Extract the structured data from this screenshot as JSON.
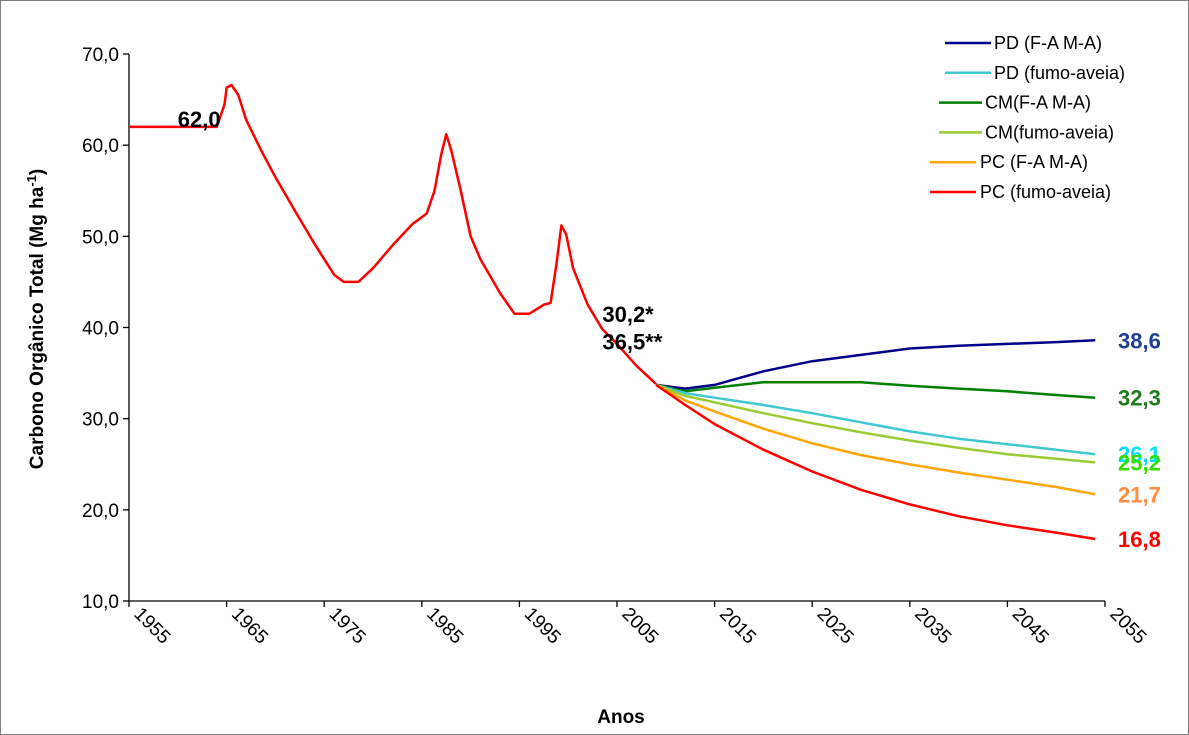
{
  "chart_data": {
    "type": "line",
    "title": "",
    "xlabel": "Anos",
    "ylabel": "Carbono Orgânico Total (Mg ha-1)",
    "ylabel_sup": "-1",
    "ylabel_main": "Carbono Orgânico Total (Mg ha",
    "ylabel_close": ")",
    "xlim": [
      1955,
      2055
    ],
    "ylim": [
      10.0,
      70.0
    ],
    "x_ticks": [
      "1955",
      "1965",
      "1975",
      "1985",
      "1995",
      "2005",
      "2015",
      "2025",
      "2035",
      "2045",
      "2055"
    ],
    "y_ticks": [
      "10,0",
      "20,0",
      "30,0",
      "40,0",
      "50,0",
      "60,0",
      "70,0"
    ],
    "y_tick_values": [
      10,
      20,
      30,
      40,
      50,
      60,
      70
    ],
    "x_tick_values": [
      1955,
      1965,
      1975,
      1985,
      1995,
      2005,
      2015,
      2025,
      2035,
      2045,
      2055
    ],
    "grid": false,
    "legend_position": "top-right",
    "history": {
      "color": "#ff0000",
      "points": [
        [
          1955,
          62.0
        ],
        [
          1964,
          62.0
        ],
        [
          1964.8,
          64.5
        ],
        [
          1965,
          66.3
        ],
        [
          1965.5,
          66.6
        ],
        [
          1966.2,
          65.5
        ],
        [
          1967,
          62.8
        ],
        [
          1968.5,
          59.5
        ],
        [
          1970,
          56.5
        ],
        [
          1972,
          52.8
        ],
        [
          1974,
          49.2
        ],
        [
          1976,
          45.8
        ],
        [
          1977,
          45.0
        ],
        [
          1978.5,
          45.0
        ],
        [
          1980,
          46.5
        ],
        [
          1982,
          49.0
        ],
        [
          1984,
          51.3
        ],
        [
          1985.5,
          52.5
        ],
        [
          1986.3,
          55.0
        ],
        [
          1987,
          59.0
        ],
        [
          1987.5,
          61.2
        ],
        [
          1988,
          59.5
        ],
        [
          1989,
          55.0
        ],
        [
          1990,
          50.0
        ],
        [
          1991,
          47.5
        ],
        [
          1993,
          43.8
        ],
        [
          1994.5,
          41.5
        ],
        [
          1996,
          41.5
        ],
        [
          1997.5,
          42.5
        ],
        [
          1998.2,
          42.7
        ],
        [
          1998.8,
          47.0
        ],
        [
          1999.3,
          51.2
        ],
        [
          1999.8,
          50.2
        ],
        [
          2000.5,
          46.5
        ],
        [
          2002,
          42.5
        ],
        [
          2003.5,
          39.8
        ],
        [
          2005,
          38.2
        ],
        [
          2007,
          35.8
        ],
        [
          2009,
          33.8
        ]
      ]
    },
    "series": [
      {
        "name": "PD (F-A M-A)",
        "color": "#00008b",
        "end_label": "38,6",
        "end_label_color": "#1f3f8f",
        "points": [
          [
            2009,
            33.7
          ],
          [
            2012,
            33.3
          ],
          [
            2015,
            33.7
          ],
          [
            2020,
            35.2
          ],
          [
            2025,
            36.3
          ],
          [
            2030,
            37.0
          ],
          [
            2035,
            37.7
          ],
          [
            2040,
            38.0
          ],
          [
            2045,
            38.2
          ],
          [
            2050,
            38.4
          ],
          [
            2054,
            38.6
          ]
        ]
      },
      {
        "name": "PD (fumo-aveia)",
        "color": "#40c8d0",
        "end_label": "26,1",
        "end_label_color": "#00e0ff",
        "points": [
          [
            2009,
            33.7
          ],
          [
            2012,
            32.8
          ],
          [
            2015,
            32.3
          ],
          [
            2020,
            31.5
          ],
          [
            2025,
            30.6
          ],
          [
            2030,
            29.6
          ],
          [
            2035,
            28.6
          ],
          [
            2040,
            27.8
          ],
          [
            2045,
            27.2
          ],
          [
            2050,
            26.6
          ],
          [
            2054,
            26.1
          ]
        ]
      },
      {
        "name": "CM(F-A M-A)",
        "color": "#008000",
        "end_label": "32,3",
        "end_label_color": "#1e7b1e",
        "points": [
          [
            2009,
            33.7
          ],
          [
            2012,
            33.0
          ],
          [
            2015,
            33.4
          ],
          [
            2020,
            34.0
          ],
          [
            2025,
            34.0
          ],
          [
            2030,
            34.0
          ],
          [
            2035,
            33.6
          ],
          [
            2040,
            33.3
          ],
          [
            2045,
            33.0
          ],
          [
            2050,
            32.6
          ],
          [
            2054,
            32.3
          ]
        ]
      },
      {
        "name": "CM(fumo-aveia)",
        "color": "#99cc33",
        "end_label": "25,2",
        "end_label_color": "#33dd00",
        "points": [
          [
            2009,
            33.7
          ],
          [
            2012,
            32.5
          ],
          [
            2015,
            31.8
          ],
          [
            2020,
            30.6
          ],
          [
            2025,
            29.5
          ],
          [
            2030,
            28.5
          ],
          [
            2035,
            27.6
          ],
          [
            2040,
            26.8
          ],
          [
            2045,
            26.1
          ],
          [
            2050,
            25.6
          ],
          [
            2054,
            25.2
          ]
        ]
      },
      {
        "name": "PC (F-A M-A)",
        "color": "#ffa500",
        "end_label": "21,7",
        "end_label_color": "#ff8c40",
        "points": [
          [
            2009,
            33.7
          ],
          [
            2012,
            32.0
          ],
          [
            2015,
            30.8
          ],
          [
            2020,
            28.9
          ],
          [
            2025,
            27.3
          ],
          [
            2030,
            26.0
          ],
          [
            2035,
            25.0
          ],
          [
            2040,
            24.1
          ],
          [
            2045,
            23.3
          ],
          [
            2050,
            22.5
          ],
          [
            2054,
            21.7
          ]
        ]
      },
      {
        "name": "PC (fumo-aveia)",
        "color": "#ff0000",
        "end_label": "16,8",
        "end_label_color": "#ff0000",
        "points": [
          [
            2009,
            33.7
          ],
          [
            2012,
            31.5
          ],
          [
            2015,
            29.4
          ],
          [
            2020,
            26.6
          ],
          [
            2025,
            24.2
          ],
          [
            2030,
            22.2
          ],
          [
            2035,
            20.6
          ],
          [
            2040,
            19.3
          ],
          [
            2045,
            18.3
          ],
          [
            2050,
            17.5
          ],
          [
            2054,
            16.8
          ]
        ]
      }
    ],
    "annotations": [
      {
        "text": "62,0",
        "x": 1960,
        "y": 62.0,
        "color": "#000000"
      },
      {
        "text": "30,2*",
        "x": 2003.5,
        "y": 40.6,
        "color": "#000000"
      },
      {
        "text": "36,5**",
        "x": 2003.5,
        "y": 37.6,
        "color": "#000000"
      }
    ]
  }
}
